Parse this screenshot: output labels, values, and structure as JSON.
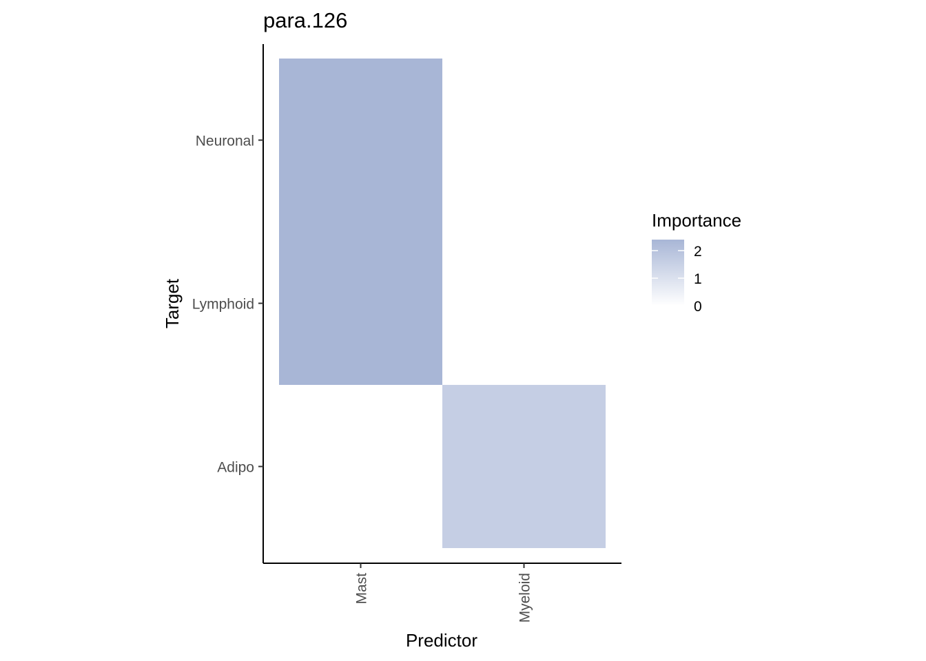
{
  "chart_data": {
    "type": "heatmap",
    "title": "para.126",
    "xlabel": "Predictor",
    "ylabel": "Target",
    "x_categories": [
      "Mast",
      "Myeloid"
    ],
    "y_categories": [
      "Adipo",
      "Lymphoid",
      "Neuronal"
    ],
    "cells": [
      {
        "x": "Mast",
        "y": "Neuronal",
        "value": 2.4
      },
      {
        "x": "Mast",
        "y": "Lymphoid",
        "value": 2.4
      },
      {
        "x": "Myeloid",
        "y": "Adipo",
        "value": 1.6
      }
    ],
    "legend": {
      "title": "Importance",
      "ticks": [
        2,
        1,
        0
      ],
      "min": 0,
      "max": 2.4,
      "low_color": "#ffffff",
      "high_color": "#a8b6d6",
      "placement": "right"
    },
    "grid": false
  }
}
